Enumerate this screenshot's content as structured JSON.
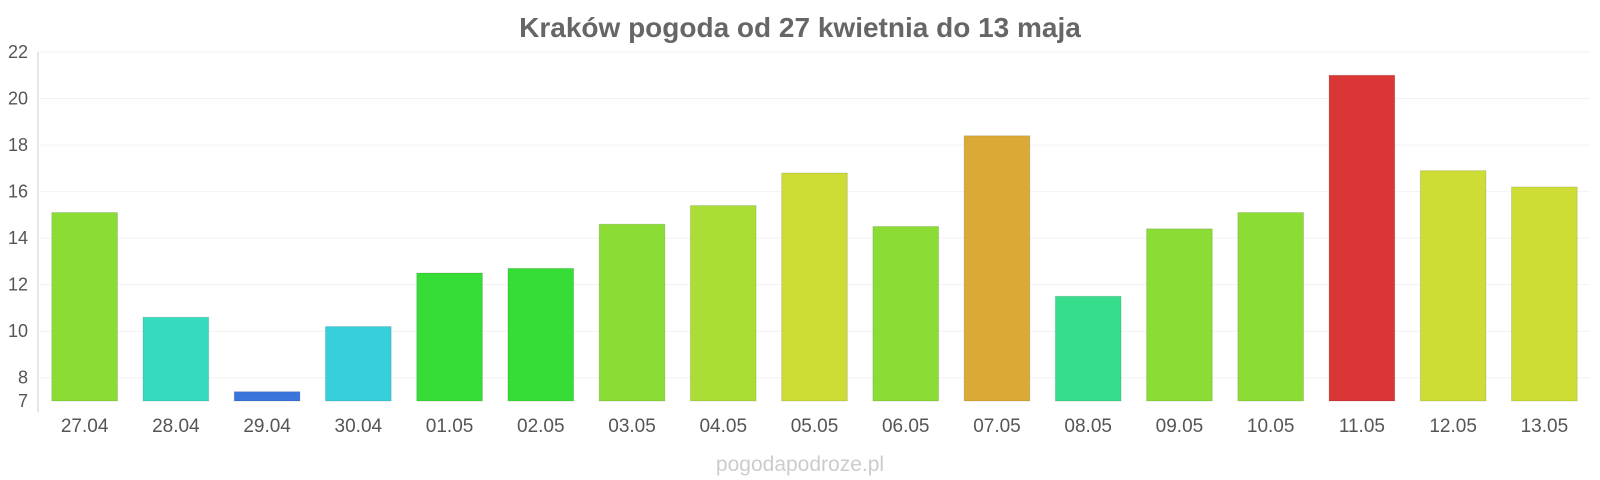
{
  "chart_data": {
    "type": "bar",
    "title": "Kraków pogoda od 27 kwietnia do 13 maja",
    "xlabel": "",
    "ylabel": "",
    "categories": [
      "27.04",
      "28.04",
      "29.04",
      "30.04",
      "01.05",
      "02.05",
      "03.05",
      "04.05",
      "05.05",
      "06.05",
      "07.05",
      "08.05",
      "09.05",
      "10.05",
      "11.05",
      "12.05",
      "13.05"
    ],
    "values": [
      15.1,
      10.6,
      7.4,
      10.2,
      12.5,
      12.7,
      14.6,
      15.4,
      16.8,
      14.5,
      18.4,
      11.5,
      14.4,
      15.1,
      21.0,
      16.9,
      16.2
    ],
    "colors": [
      "#8bdd36",
      "#36dbbf",
      "#3a75dc",
      "#36cfdb",
      "#36dd36",
      "#36dd36",
      "#8bdd36",
      "#aadd36",
      "#cddd36",
      "#8bdd36",
      "#dbaa36",
      "#36dd8b",
      "#8bdd36",
      "#8bdd36",
      "#db3636",
      "#cddd36",
      "#cddd36"
    ],
    "ylim": [
      7,
      22
    ],
    "yticks": [
      7,
      8,
      10,
      12,
      14,
      16,
      18,
      20,
      22
    ],
    "grid": true,
    "legend": "none"
  },
  "credit": "pogodapodroze.pl"
}
